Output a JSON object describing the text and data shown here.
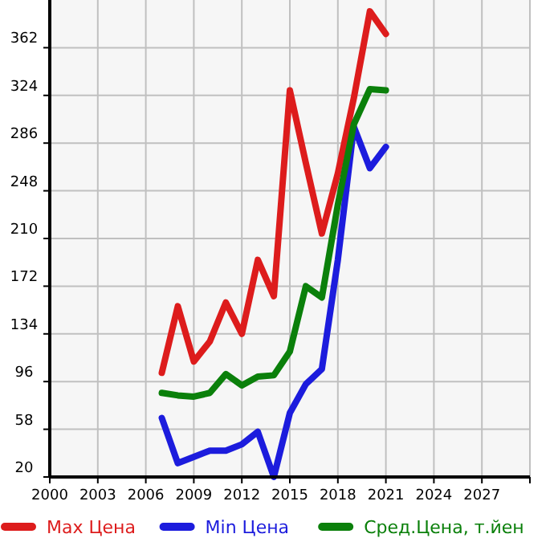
{
  "chart_data": {
    "type": "line",
    "x": [
      2007,
      2008,
      2009,
      2010,
      2011,
      2012,
      2013,
      2014,
      2015,
      2016,
      2017,
      2018,
      2019,
      2020,
      2021
    ],
    "series": [
      {
        "name": "Max Цена",
        "color": "#dd1c1c",
        "values": [
          103,
          156,
          112,
          128,
          159,
          134,
          193,
          164,
          328,
          270,
          214,
          262,
          322,
          391,
          373
        ]
      },
      {
        "name": "Min Цена",
        "color": "#1c1cdd",
        "values": [
          67,
          31,
          36,
          41,
          41,
          46,
          56,
          20,
          71,
          94,
          106,
          193,
          299,
          266,
          283
        ]
      },
      {
        "name": "Сред.Цена, т.йен",
        "color": "#0b800b",
        "values": [
          87,
          85,
          84,
          87,
          102,
          93,
          100,
          101,
          120,
          172,
          163,
          237,
          301,
          329,
          328
        ]
      }
    ],
    "xlim": [
      2000,
      2030
    ],
    "xticks": [
      2000,
      2003,
      2006,
      2009,
      2012,
      2015,
      2018,
      2021,
      2024,
      2027
    ],
    "ylim": [
      20,
      400
    ],
    "yticks": [
      20,
      58,
      96,
      134,
      172,
      210,
      248,
      286,
      324,
      362
    ],
    "grid": true,
    "legend": "bottom",
    "marker": "none",
    "line_style": "solid"
  }
}
